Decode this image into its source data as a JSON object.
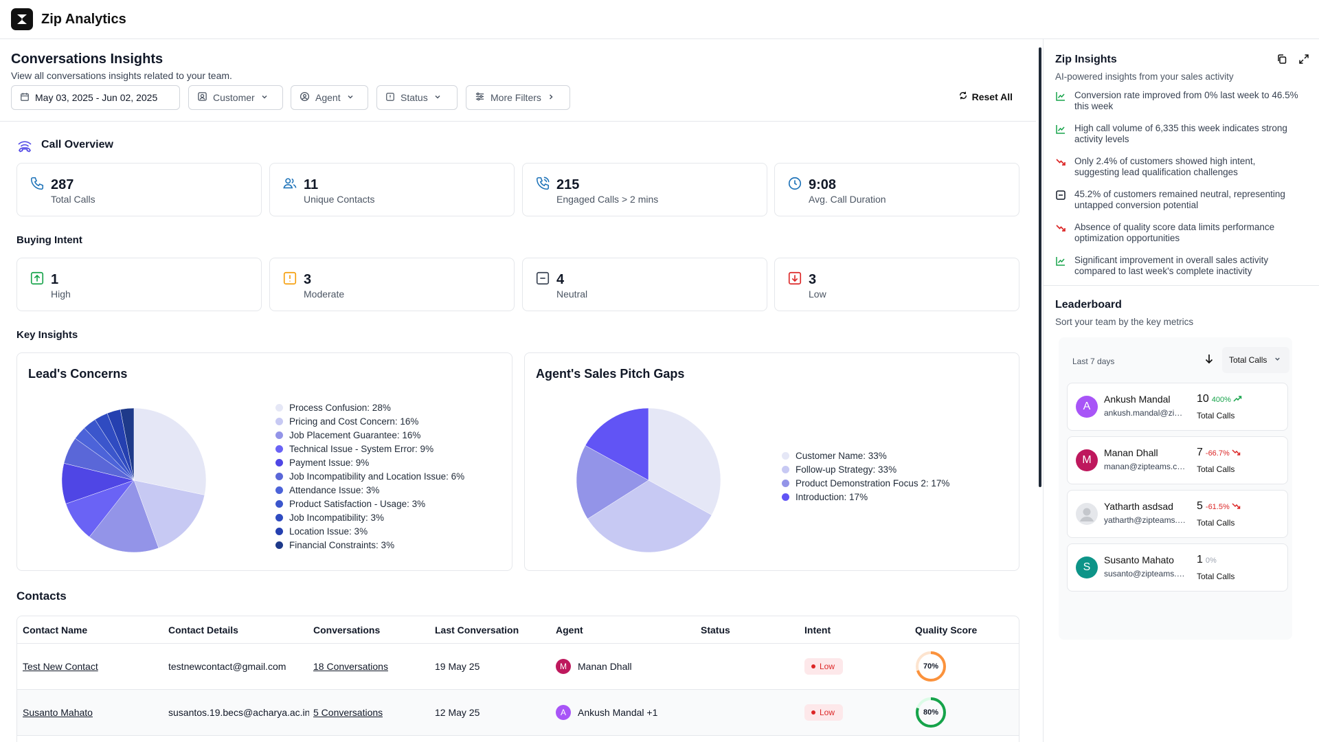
{
  "app": {
    "title": "Zip Analytics"
  },
  "header": {
    "title": "Conversations Insights",
    "subtitle": "View all conversations insights related to your team."
  },
  "filters": {
    "date_range": "May 03, 2025 - Jun 02, 2025",
    "customer": "Customer",
    "agent": "Agent",
    "status": "Status",
    "more": "More Filters",
    "reset": "Reset All"
  },
  "call_overview": {
    "title": "Call Overview",
    "cards": [
      {
        "value": "287",
        "label": "Total Calls",
        "icon": "phone-icon"
      },
      {
        "value": "11",
        "label": "Unique Contacts",
        "icon": "users-icon"
      },
      {
        "value": "215",
        "label": "Engaged Calls > 2 mins",
        "icon": "phone-ring-icon"
      },
      {
        "value": "9:08",
        "label": "Avg. Call Duration",
        "icon": "clock-icon"
      }
    ]
  },
  "buying_intent": {
    "title": "Buying Intent",
    "cards": [
      {
        "value": "1",
        "label": "High",
        "icon": "arrow-up-box-icon",
        "color": "#16a34a"
      },
      {
        "value": "3",
        "label": "Moderate",
        "icon": "alert-box-icon",
        "color": "#f59e0b"
      },
      {
        "value": "4",
        "label": "Neutral",
        "icon": "minus-box-icon",
        "color": "#374151"
      },
      {
        "value": "3",
        "label": "Low",
        "icon": "arrow-down-box-icon",
        "color": "#dc2626"
      }
    ]
  },
  "key_insights": {
    "title": "Key Insights"
  },
  "chart_data": [
    {
      "type": "pie",
      "title": "Lead's Concerns",
      "categories": [
        "Process Confusion: 28%",
        "Pricing and Cost Concern: 16%",
        "Job Placement Guarantee: 16%",
        "Technical Issue - System Error: 9%",
        "Payment Issue: 9%",
        "Job Incompatibility and Location Issue: 6%",
        "Attendance Issue: 3%",
        "Product Satisfaction - Usage: 3%",
        "Job Incompatibility: 3%",
        "Location Issue: 3%",
        "Financial Constraints: 3%"
      ],
      "values": [
        28,
        16,
        16,
        9,
        9,
        6,
        3,
        3,
        3,
        3,
        3
      ],
      "colors": [
        "#e5e7f6",
        "#c7c9f3",
        "#9394e8",
        "#6a63f5",
        "#4f46e5",
        "#5a67d8",
        "#4c63d9",
        "#3b56cc",
        "#2f4bc1",
        "#2540b0",
        "#1e3a8a"
      ],
      "legend": "right"
    },
    {
      "type": "pie",
      "title": "Agent's Sales Pitch Gaps",
      "categories": [
        "Customer Name: 33%",
        "Follow-up Strategy: 33%",
        "Product Demonstration Focus 2: 17%",
        "Introduction: 17%"
      ],
      "values": [
        33,
        33,
        17,
        17
      ],
      "colors": [
        "#e5e7f6",
        "#c7c9f3",
        "#9394e8",
        "#6154f5"
      ],
      "legend": "right"
    }
  ],
  "contacts": {
    "title": "Contacts",
    "columns": [
      "Contact Name",
      "Contact Details",
      "Conversations",
      "Last Conversation",
      "Agent",
      "Status",
      "Intent",
      "Quality Score"
    ],
    "rows": [
      {
        "name": "Test New Contact",
        "details": "testnewcontact@gmail.com",
        "conversations": "18 Conversations",
        "last": "19 May 25",
        "agent_initial": "M",
        "agent": "Manan Dhall",
        "agent_color": "#be185d",
        "status": "",
        "intent": "Low",
        "score": 70,
        "score_label": "70%",
        "score_color": "#fb923c"
      },
      {
        "name": "Susanto Mahato",
        "details": "susantos.19.becs@acharya.ac.in",
        "conversations": "5 Conversations",
        "last": "12 May 25",
        "agent_initial": "A",
        "agent": "Ankush Mandal +1",
        "agent_color": "#a855f7",
        "status": "",
        "intent": "Low",
        "score": 80,
        "score_label": "80%",
        "score_color": "#16a34a"
      }
    ]
  },
  "zip_insights": {
    "title": "Zip Insights",
    "subtitle": "AI-powered insights from your sales activity",
    "items": [
      {
        "text": "Conversion rate improved from 0% last week to 46.5% this week",
        "icon": "trend-up-icon",
        "color": "#16a34a"
      },
      {
        "text": "High call volume of 6,335 this week indicates strong activity levels",
        "icon": "trend-up-icon",
        "color": "#16a34a"
      },
      {
        "text": "Only 2.4% of customers showed high intent, suggesting lead qualification challenges",
        "icon": "trend-down-icon",
        "color": "#dc2626"
      },
      {
        "text": "45.2% of customers remained neutral, representing untapped conversion potential",
        "icon": "minus-box-icon",
        "color": "#111827"
      },
      {
        "text": "Absence of quality score data limits performance optimization opportunities",
        "icon": "trend-down-icon",
        "color": "#dc2626"
      },
      {
        "text": "Significant improvement in overall sales activity compared to last week's complete inactivity",
        "icon": "trend-up-icon",
        "color": "#16a34a"
      }
    ]
  },
  "leaderboard": {
    "title": "Leaderboard",
    "subtitle": "Sort your team by the key metrics",
    "period": "Last 7 days",
    "metric": "Total Calls",
    "entries": [
      {
        "initial": "A",
        "name": "Ankush Mandal",
        "email": "ankush.mandal@zipteams.com",
        "value": "10",
        "change": "400%",
        "trend": "up",
        "unit": "Total Calls",
        "color": "#a855f7"
      },
      {
        "initial": "M",
        "name": "Manan Dhall",
        "email": "manan@zipteams.com",
        "value": "7",
        "change": "-66.7%",
        "trend": "down",
        "unit": "Total Calls",
        "color": "#be185d"
      },
      {
        "initial": "",
        "name": "Yatharth asdsad",
        "email": "yatharth@zipteams.com",
        "value": "5",
        "change": "-61.5%",
        "trend": "down",
        "unit": "Total Calls",
        "color": "#e5e7eb"
      },
      {
        "initial": "S",
        "name": "Susanto Mahato",
        "email": "susanto@zipteams.com",
        "value": "1",
        "change": "0%",
        "trend": "flat",
        "unit": "Total Calls",
        "color": "#0d9488"
      }
    ]
  }
}
